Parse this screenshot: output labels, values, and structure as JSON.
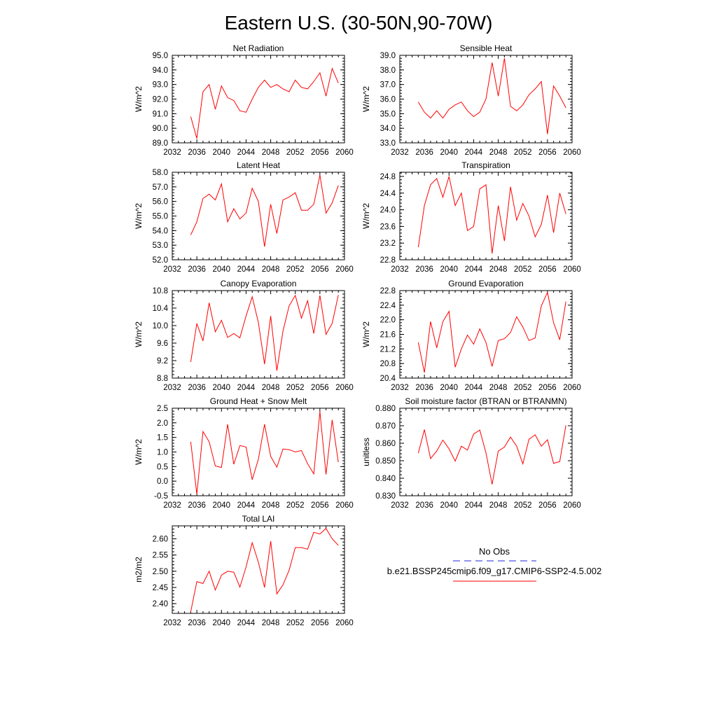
{
  "title": "Eastern U.S. (30-50N,90-70W)",
  "colors": {
    "series": "#ff0000",
    "obs": "#1c2bd9",
    "axis": "#000000"
  },
  "legend": {
    "obs_label": "No Obs",
    "model_label": "b.e21.BSSP245cmip6.f09_g17.CMIP6-SSP2-4.5.002"
  },
  "chart_data": [
    {
      "type": "line",
      "title": "Net Radiation",
      "ylabel": "W/m^2",
      "xlim": [
        2032,
        2060
      ],
      "ylim": [
        89,
        95
      ],
      "xticks": [
        2032,
        2036,
        2040,
        2044,
        2048,
        2052,
        2056,
        2060
      ],
      "yticks": [
        "89.0",
        "90.0",
        "91.0",
        "92.0",
        "93.0",
        "94.0",
        "95.0"
      ],
      "x": [
        2035,
        2036,
        2037,
        2038,
        2039,
        2040,
        2041,
        2042,
        2043,
        2044,
        2045,
        2046,
        2047,
        2048,
        2049,
        2050,
        2051,
        2052,
        2053,
        2054,
        2055,
        2056,
        2057,
        2058,
        2059
      ],
      "values": [
        90.8,
        89.3,
        92.5,
        93.0,
        91.3,
        92.9,
        92.1,
        91.9,
        91.2,
        91.1,
        92.0,
        92.8,
        93.3,
        92.8,
        93.0,
        92.7,
        92.5,
        93.3,
        92.8,
        92.7,
        93.2,
        93.8,
        92.2,
        94.1,
        93.1
      ]
    },
    {
      "type": "line",
      "title": "Sensible Heat",
      "ylabel": "W/m^2",
      "xlim": [
        2032,
        2060
      ],
      "ylim": [
        33,
        39
      ],
      "xticks": [
        2032,
        2036,
        2040,
        2044,
        2048,
        2052,
        2056,
        2060
      ],
      "yticks": [
        "33.0",
        "34.0",
        "35.0",
        "36.0",
        "37.0",
        "38.0",
        "39.0"
      ],
      "x": [
        2035,
        2036,
        2037,
        2038,
        2039,
        2040,
        2041,
        2042,
        2043,
        2044,
        2045,
        2046,
        2047,
        2048,
        2049,
        2050,
        2051,
        2052,
        2053,
        2054,
        2055,
        2056,
        2057,
        2058,
        2059
      ],
      "values": [
        35.8,
        35.1,
        34.7,
        35.2,
        34.7,
        35.3,
        35.6,
        35.8,
        35.2,
        34.8,
        35.1,
        36.0,
        38.5,
        36.2,
        38.8,
        35.5,
        35.2,
        35.6,
        36.3,
        36.7,
        37.2,
        33.6,
        36.9,
        36.2,
        35.4
      ]
    },
    {
      "type": "line",
      "title": "Latent Heat",
      "ylabel": "W/m^2",
      "xlim": [
        2032,
        2060
      ],
      "ylim": [
        52,
        58
      ],
      "xticks": [
        2032,
        2036,
        2040,
        2044,
        2048,
        2052,
        2056,
        2060
      ],
      "yticks": [
        "52.0",
        "53.0",
        "54.0",
        "55.0",
        "56.0",
        "57.0",
        "58.0"
      ],
      "x": [
        2035,
        2036,
        2037,
        2038,
        2039,
        2040,
        2041,
        2042,
        2043,
        2044,
        2045,
        2046,
        2047,
        2048,
        2049,
        2050,
        2051,
        2052,
        2053,
        2054,
        2055,
        2056,
        2057,
        2058,
        2059
      ],
      "values": [
        53.7,
        54.6,
        56.2,
        56.5,
        56.1,
        57.2,
        54.6,
        55.5,
        54.8,
        55.2,
        56.9,
        56.0,
        52.9,
        55.8,
        53.8,
        56.1,
        56.3,
        56.6,
        55.4,
        55.4,
        55.8,
        57.8,
        55.2,
        55.9,
        57.1
      ]
    },
    {
      "type": "line",
      "title": "Transpiration",
      "ylabel": "W/m^2",
      "xlim": [
        2032,
        2060
      ],
      "ylim": [
        22.8,
        24.9
      ],
      "xticks": [
        2032,
        2036,
        2040,
        2044,
        2048,
        2052,
        2056,
        2060
      ],
      "yticks": [
        "22.8",
        "23.2",
        "23.6",
        "24.0",
        "24.4",
        "24.8"
      ],
      "x": [
        2035,
        2036,
        2037,
        2038,
        2039,
        2040,
        2041,
        2042,
        2043,
        2044,
        2045,
        2046,
        2047,
        2048,
        2049,
        2050,
        2051,
        2052,
        2053,
        2054,
        2055,
        2056,
        2057,
        2058,
        2059
      ],
      "values": [
        23.1,
        24.1,
        24.6,
        24.75,
        24.3,
        24.8,
        24.1,
        24.4,
        23.5,
        23.6,
        24.5,
        24.6,
        22.95,
        24.1,
        23.25,
        24.55,
        23.75,
        24.15,
        23.85,
        23.35,
        23.65,
        24.35,
        23.45,
        24.4,
        23.9
      ]
    },
    {
      "type": "line",
      "title": "Canopy Evaporation",
      "ylabel": "W/m^2",
      "xlim": [
        2032,
        2060
      ],
      "ylim": [
        8.8,
        10.8
      ],
      "xticks": [
        2032,
        2036,
        2040,
        2044,
        2048,
        2052,
        2056,
        2060
      ],
      "yticks": [
        "8.8",
        "9.2",
        "9.6",
        "10.0",
        "10.4",
        "10.8"
      ],
      "x": [
        2035,
        2036,
        2037,
        2038,
        2039,
        2040,
        2041,
        2042,
        2043,
        2044,
        2045,
        2046,
        2047,
        2048,
        2049,
        2050,
        2051,
        2052,
        2053,
        2054,
        2055,
        2056,
        2057,
        2058,
        2059
      ],
      "values": [
        9.17,
        10.05,
        9.65,
        10.52,
        9.86,
        10.12,
        9.73,
        9.82,
        9.72,
        10.22,
        10.66,
        10.07,
        9.12,
        10.22,
        8.97,
        9.87,
        10.45,
        10.69,
        10.17,
        10.57,
        9.82,
        10.69,
        9.8,
        10.05,
        10.7
      ]
    },
    {
      "type": "line",
      "title": "Ground Evaporation",
      "ylabel": "W/m^2",
      "xlim": [
        2032,
        2060
      ],
      "ylim": [
        20.4,
        22.8
      ],
      "xticks": [
        2032,
        2036,
        2040,
        2044,
        2048,
        2052,
        2056,
        2060
      ],
      "yticks": [
        "20.4",
        "20.8",
        "21.2",
        "21.6",
        "22.0",
        "22.4",
        "22.8"
      ],
      "x": [
        2035,
        2036,
        2037,
        2038,
        2039,
        2040,
        2041,
        2042,
        2043,
        2044,
        2045,
        2046,
        2047,
        2048,
        2049,
        2050,
        2051,
        2052,
        2053,
        2054,
        2055,
        2056,
        2057,
        2058,
        2059
      ],
      "values": [
        21.38,
        20.55,
        21.95,
        21.23,
        21.95,
        22.23,
        20.7,
        21.2,
        21.58,
        21.33,
        21.75,
        21.38,
        20.72,
        21.43,
        21.48,
        21.65,
        22.08,
        21.8,
        21.43,
        21.5,
        22.38,
        22.75,
        21.92,
        21.45,
        22.5
      ]
    },
    {
      "type": "line",
      "title": "Ground Heat + Snow Melt",
      "ylabel": "W/m^2",
      "xlim": [
        2032,
        2060
      ],
      "ylim": [
        -0.5,
        2.5
      ],
      "xticks": [
        2032,
        2036,
        2040,
        2044,
        2048,
        2052,
        2056,
        2060
      ],
      "yticks": [
        "-0.5",
        "0.0",
        "0.5",
        "1.0",
        "1.5",
        "2.0",
        "2.5"
      ],
      "x": [
        2035,
        2036,
        2037,
        2038,
        2039,
        2040,
        2041,
        2042,
        2043,
        2044,
        2045,
        2046,
        2047,
        2048,
        2049,
        2050,
        2051,
        2052,
        2053,
        2054,
        2055,
        2056,
        2057,
        2058,
        2059
      ],
      "values": [
        1.35,
        -0.45,
        1.7,
        1.35,
        0.52,
        0.47,
        1.95,
        0.58,
        1.22,
        1.17,
        0.05,
        0.75,
        1.95,
        0.85,
        0.48,
        1.1,
        1.08,
        1.0,
        1.05,
        0.6,
        0.25,
        2.38,
        0.23,
        2.1,
        0.65
      ]
    },
    {
      "type": "line",
      "title": "Soil moisture factor (BTRAN or BTRANMN)",
      "ylabel": "unitless",
      "xlim": [
        2032,
        2060
      ],
      "ylim": [
        0.83,
        0.88
      ],
      "xticks": [
        2032,
        2036,
        2040,
        2044,
        2048,
        2052,
        2056,
        2060
      ],
      "yticks": [
        "0.830",
        "0.840",
        "0.850",
        "0.860",
        "0.870",
        "0.880"
      ],
      "x": [
        2035,
        2036,
        2037,
        2038,
        2039,
        2040,
        2041,
        2042,
        2043,
        2044,
        2045,
        2046,
        2047,
        2048,
        2049,
        2050,
        2051,
        2052,
        2053,
        2054,
        2055,
        2056,
        2057,
        2058,
        2059
      ],
      "values": [
        0.8543,
        0.8678,
        0.8512,
        0.8555,
        0.8618,
        0.8568,
        0.8498,
        0.8583,
        0.8561,
        0.8652,
        0.8675,
        0.8545,
        0.8365,
        0.8555,
        0.8578,
        0.8635,
        0.8583,
        0.8482,
        0.8623,
        0.8648,
        0.8583,
        0.862,
        0.8485,
        0.8495,
        0.8703
      ]
    },
    {
      "type": "line",
      "title": "Total LAI",
      "ylabel": "m2/m2",
      "xlim": [
        2032,
        2060
      ],
      "ylim": [
        2.37,
        2.64
      ],
      "xticks": [
        2032,
        2036,
        2040,
        2044,
        2048,
        2052,
        2056,
        2060
      ],
      "yticks": [
        "2.40",
        "2.45",
        "2.50",
        "2.55",
        "2.60"
      ],
      "x": [
        2035,
        2036,
        2037,
        2038,
        2039,
        2040,
        2041,
        2042,
        2043,
        2044,
        2045,
        2046,
        2047,
        2048,
        2049,
        2050,
        2051,
        2052,
        2053,
        2054,
        2055,
        2056,
        2057,
        2058,
        2059
      ],
      "values": [
        2.375,
        2.468,
        2.462,
        2.5,
        2.442,
        2.488,
        2.5,
        2.497,
        2.451,
        2.513,
        2.588,
        2.528,
        2.45,
        2.593,
        2.43,
        2.458,
        2.503,
        2.573,
        2.573,
        2.568,
        2.62,
        2.615,
        2.632,
        2.6,
        2.58
      ]
    }
  ]
}
